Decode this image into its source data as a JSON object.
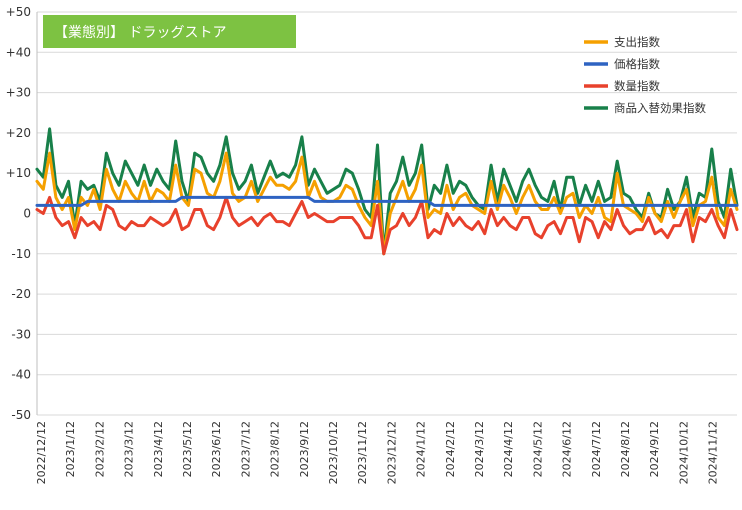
{
  "chart_data": {
    "type": "line",
    "title": "【業態別】 ドラッグストア",
    "xlabel": "",
    "ylabel": "",
    "ylim": [
      -50,
      50
    ],
    "yticks": [
      -50,
      -40,
      -30,
      -20,
      -10,
      0,
      10,
      20,
      30,
      40,
      50
    ],
    "ytick_labels": [
      "-50",
      "-40",
      "-30",
      "-20",
      "-10",
      "0",
      "+10",
      "+20",
      "+30",
      "+40",
      "+50"
    ],
    "xtick_labels": [
      "2022/12/12",
      "2023/1/12",
      "2023/2/12",
      "2023/3/12",
      "2023/4/12",
      "2023/5/12",
      "2023/6/12",
      "2023/7/12",
      "2023/8/12",
      "2023/9/12",
      "2023/10/12",
      "2023/11/12",
      "2023/12/12",
      "2024/1/12",
      "2024/2/12",
      "2024/3/12",
      "2024/4/12",
      "2024/5/12",
      "2024/6/12",
      "2024/7/12",
      "2024/8/12",
      "2024/9/12",
      "2024/10/12",
      "2024/11/12"
    ],
    "grid": true,
    "legend_position": "top-right",
    "colors": {
      "spending": "#f5a000",
      "price": "#2e63c2",
      "quantity": "#e8412c",
      "mix": "#18804a",
      "title_box": "#7dc242",
      "grid": "#d9d9d9"
    },
    "series": [
      {
        "name": "支出指数",
        "values": [
          8,
          6,
          15,
          4,
          1,
          4,
          -4,
          4,
          2,
          6,
          1,
          11,
          6,
          3,
          8,
          5,
          3,
          8,
          3,
          6,
          5,
          3,
          12,
          4,
          2,
          11,
          10,
          5,
          4,
          8,
          15,
          5,
          3,
          4,
          8,
          3,
          6,
          9,
          7,
          7,
          6,
          8,
          14,
          4,
          8,
          4,
          3,
          3,
          4,
          7,
          6,
          2,
          -1,
          -3,
          8,
          -10,
          0,
          4,
          8,
          3,
          6,
          12,
          -1,
          1,
          0,
          7,
          1,
          4,
          5,
          2,
          1,
          0,
          8,
          1,
          7,
          4,
          0,
          4,
          7,
          3,
          1,
          1,
          4,
          0,
          4,
          5,
          -1,
          2,
          0,
          4,
          -1,
          -2,
          10,
          2,
          1,
          0,
          -2,
          4,
          0,
          -2,
          3,
          -1,
          3,
          6,
          -3,
          2,
          3,
          9,
          -1,
          -3,
          6,
          1
        ]
      },
      {
        "name": "価格指数",
        "values": [
          2,
          2,
          2,
          2,
          2,
          2,
          2,
          2,
          3,
          3,
          3,
          3,
          3,
          3,
          3,
          3,
          3,
          3,
          3,
          3,
          3,
          3,
          3,
          4,
          4,
          4,
          4,
          4,
          4,
          4,
          4,
          4,
          4,
          4,
          4,
          4,
          4,
          4,
          4,
          4,
          4,
          4,
          4,
          4,
          3,
          3,
          3,
          3,
          3,
          3,
          3,
          3,
          3,
          3,
          3,
          3,
          3,
          3,
          3,
          3,
          3,
          3,
          3,
          2,
          2,
          2,
          2,
          2,
          2,
          2,
          2,
          2,
          2,
          2,
          2,
          2,
          2,
          2,
          2,
          2,
          2,
          2,
          2,
          2,
          2,
          2,
          2,
          2,
          2,
          2,
          2,
          2,
          2,
          2,
          2,
          2,
          2,
          2,
          2,
          2,
          2,
          2,
          2,
          2,
          2,
          2,
          2,
          2,
          2,
          2,
          2,
          2
        ]
      },
      {
        "name": "数量指数",
        "values": [
          1,
          0,
          4,
          -1,
          -3,
          -2,
          -6,
          -1,
          -3,
          -2,
          -4,
          2,
          1,
          -3,
          -4,
          -2,
          -3,
          -3,
          -1,
          -2,
          -3,
          -2,
          1,
          -4,
          -3,
          1,
          1,
          -3,
          -4,
          -1,
          4,
          -1,
          -3,
          -2,
          -1,
          -3,
          -1,
          0,
          -2,
          -2,
          -3,
          0,
          3,
          -1,
          0,
          -1,
          -2,
          -2,
          -1,
          -1,
          -1,
          -3,
          -6,
          -6,
          2,
          -10,
          -4,
          -3,
          0,
          -3,
          -1,
          3,
          -6,
          -4,
          -5,
          0,
          -3,
          -1,
          -3,
          -4,
          -2,
          -5,
          1,
          -3,
          -1,
          -3,
          -4,
          -1,
          -1,
          -5,
          -6,
          -3,
          -2,
          -5,
          -1,
          -1,
          -7,
          -1,
          -2,
          -6,
          -2,
          -4,
          1,
          -3,
          -5,
          -4,
          -4,
          -1,
          -5,
          -4,
          -6,
          -3,
          -3,
          1,
          -7,
          -1,
          -2,
          1,
          -3,
          -6,
          1,
          -4
        ]
      },
      {
        "name": "商品入替効果指数",
        "values": [
          11,
          9,
          21,
          7,
          4,
          8,
          -3,
          8,
          6,
          7,
          3,
          15,
          10,
          7,
          13,
          10,
          7,
          12,
          7,
          11,
          8,
          6,
          18,
          8,
          3,
          15,
          14,
          10,
          8,
          12,
          19,
          10,
          6,
          8,
          12,
          5,
          9,
          13,
          9,
          10,
          9,
          12,
          19,
          7,
          11,
          8,
          5,
          6,
          7,
          11,
          10,
          6,
          1,
          -1,
          17,
          -10,
          5,
          8,
          14,
          7,
          10,
          17,
          1,
          7,
          5,
          12,
          5,
          8,
          7,
          4,
          2,
          1,
          12,
          3,
          11,
          7,
          3,
          8,
          11,
          7,
          4,
          3,
          8,
          1,
          9,
          9,
          2,
          7,
          3,
          8,
          3,
          4,
          13,
          5,
          4,
          1,
          -1,
          5,
          0,
          -1,
          6,
          1,
          3,
          9,
          -1,
          5,
          4,
          16,
          3,
          -1,
          11,
          2
        ]
      }
    ]
  }
}
